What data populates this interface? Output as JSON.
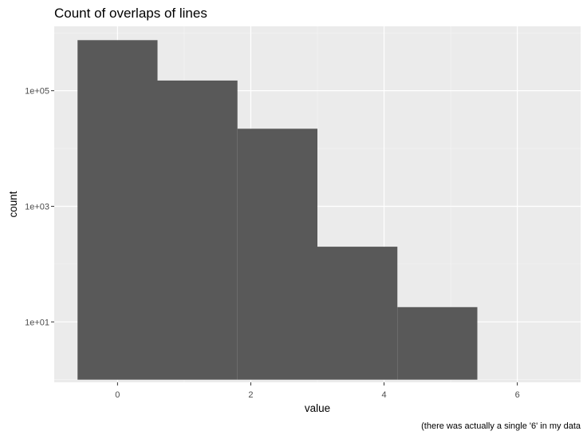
{
  "chart_data": {
    "type": "bar",
    "title": "Count of overlaps of lines",
    "xlabel": "value",
    "ylabel": "count",
    "caption": "(there was actually a single '6' in my data",
    "y_scale": "log10",
    "grid": true,
    "panel_color": "#ebebeb",
    "bar_color": "#595959",
    "x_ticks": [
      {
        "value": 0,
        "label": "0"
      },
      {
        "value": 2,
        "label": "2"
      },
      {
        "value": 4,
        "label": "4"
      },
      {
        "value": 6,
        "label": "6"
      }
    ],
    "y_ticks": [
      {
        "value": 10,
        "label": "1e+01"
      },
      {
        "value": 1000,
        "label": "1e+03"
      },
      {
        "value": 100000,
        "label": "1e+05"
      }
    ],
    "xlim": [
      -0.95,
      6.95
    ],
    "ylim": [
      0.9,
      1300000
    ],
    "bars": [
      {
        "xmin": -0.6,
        "xmax": 0.6,
        "count": 750000
      },
      {
        "xmin": 0.6,
        "xmax": 1.8,
        "count": 150000
      },
      {
        "xmin": 1.8,
        "xmax": 3.0,
        "count": 22000
      },
      {
        "xmin": 3.0,
        "xmax": 4.2,
        "count": 200
      },
      {
        "xmin": 4.2,
        "xmax": 5.4,
        "count": 18
      }
    ]
  }
}
